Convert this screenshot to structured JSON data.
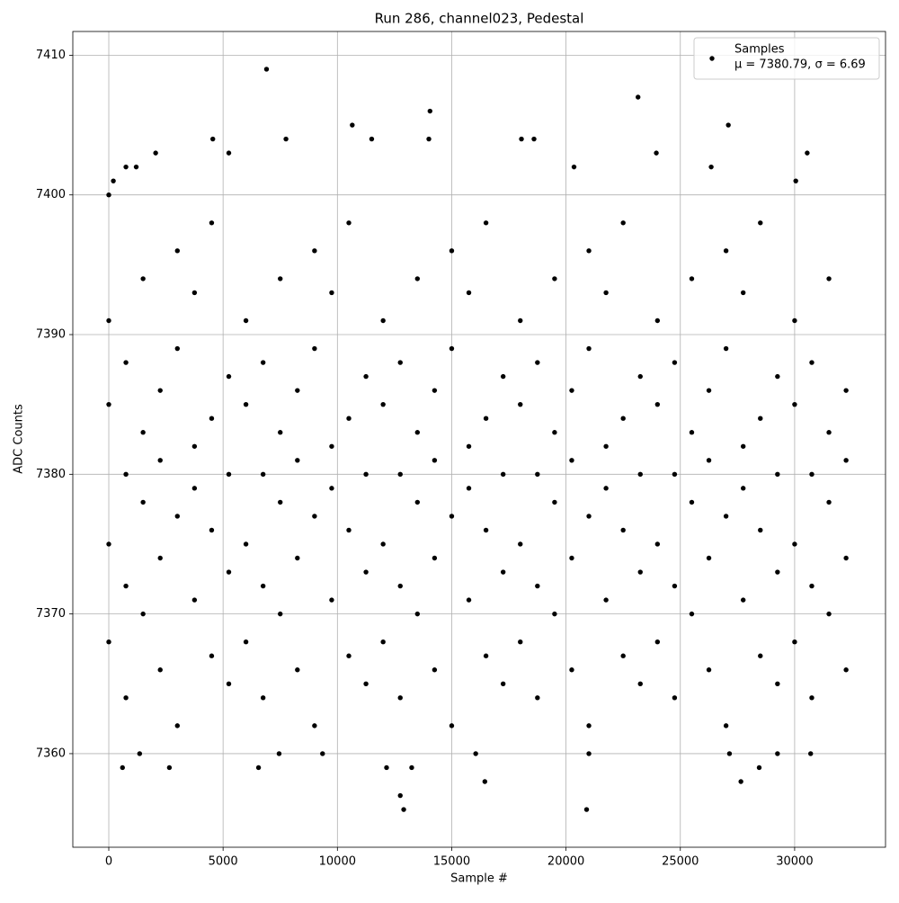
{
  "chart_data": {
    "type": "scatter",
    "title": "Run 286, channel023, Pedestal",
    "x_label": "Sample #",
    "y_label": "ADC Counts",
    "xlim": [
      -1573,
      33975
    ],
    "ylim": [
      7353.3,
      7411.7
    ],
    "xticks": [
      0,
      5000,
      10000,
      15000,
      20000,
      25000,
      30000
    ],
    "yticks": [
      7360,
      7370,
      7380,
      7390,
      7400,
      7410
    ],
    "grid": true,
    "legend_corner": "upper right",
    "legend_note": "μ = 7380.79, σ = 6.69",
    "series": [
      {
        "name": "Samples",
        "color": "#000000",
        "x": [
          0,
          0,
          0,
          0,
          750,
          750,
          750,
          750,
          1500,
          1500,
          1500,
          1500,
          2250,
          2250,
          2250,
          2250,
          3000,
          3000,
          3000,
          3000,
          3750,
          3750,
          3750,
          3750,
          4500,
          4500,
          4500,
          4500,
          5250,
          5250,
          5250,
          5250,
          6000,
          6000,
          6000,
          6000,
          6750,
          6750,
          6750,
          6750,
          7500,
          7500,
          7500,
          7500,
          8250,
          8250,
          8250,
          8250,
          9000,
          9000,
          9000,
          9000,
          9750,
          9750,
          9750,
          9750,
          10500,
          10500,
          10500,
          10500,
          11250,
          11250,
          11250,
          11250,
          12000,
          12000,
          12000,
          12000,
          12750,
          12750,
          12750,
          12750,
          13500,
          13500,
          13500,
          13500,
          14250,
          14250,
          14250,
          14250,
          15000,
          15000,
          15000,
          15000,
          15750,
          15750,
          15750,
          15750,
          16500,
          16500,
          16500,
          16500,
          17250,
          17250,
          17250,
          17250,
          18000,
          18000,
          18000,
          18000,
          18750,
          18750,
          18750,
          18750,
          19500,
          19500,
          19500,
          19500,
          20250,
          20250,
          20250,
          20250,
          21000,
          21000,
          21000,
          21000,
          21750,
          21750,
          21750,
          21750,
          22500,
          22500,
          22500,
          22500,
          23250,
          23250,
          23250,
          23250,
          24000,
          24000,
          24000,
          24000,
          24750,
          24750,
          24750,
          24750,
          25500,
          25500,
          25500,
          25500,
          26250,
          26250,
          26250,
          26250,
          27000,
          27000,
          27000,
          27000,
          27750,
          27750,
          27750,
          27750,
          28500,
          28500,
          28500,
          28500,
          29250,
          29250,
          29250,
          29250,
          30000,
          30000,
          30000,
          30000,
          30750,
          30750,
          30750,
          30750,
          31500,
          31500,
          31500,
          31500,
          32250,
          32250,
          32250,
          32250,
          0,
          200,
          750,
          1200,
          2050,
          4550,
          5250,
          6900,
          7750,
          10650,
          11500,
          14050,
          14000,
          18050,
          18600,
          20350,
          23150,
          23950,
          26350,
          27100,
          30550,
          30050,
          600,
          1350,
          2650,
          6550,
          7450,
          9350,
          12150,
          12750,
          12900,
          13250,
          16450,
          16050,
          20900,
          21000,
          27650,
          28450,
          29250,
          27150,
          30700
        ],
        "values": [
          7375,
          7385,
          7368,
          7391,
          7380,
          7372,
          7388,
          7364,
          7378,
          7394,
          7370,
          7383,
          7386,
          7366,
          7381,
          7374,
          7377,
          7389,
          7362,
          7396,
          7382,
          7371,
          7393,
          7379,
          7384,
          7367,
          7376,
          7398,
          7373,
          7387,
          7380,
          7365,
          7375,
          7385,
          7368,
          7391,
          7380,
          7372,
          7388,
          7364,
          7378,
          7394,
          7370,
          7383,
          7386,
          7366,
          7381,
          7374,
          7377,
          7389,
          7362,
          7396,
          7382,
          7371,
          7393,
          7379,
          7384,
          7367,
          7376,
          7398,
          7373,
          7387,
          7380,
          7365,
          7375,
          7385,
          7368,
          7391,
          7380,
          7372,
          7388,
          7364,
          7378,
          7394,
          7370,
          7383,
          7386,
          7366,
          7381,
          7374,
          7377,
          7389,
          7362,
          7396,
          7382,
          7371,
          7393,
          7379,
          7384,
          7367,
          7376,
          7398,
          7373,
          7387,
          7380,
          7365,
          7375,
          7385,
          7368,
          7391,
          7380,
          7372,
          7388,
          7364,
          7378,
          7394,
          7370,
          7383,
          7386,
          7366,
          7381,
          7374,
          7377,
          7389,
          7362,
          7396,
          7382,
          7371,
          7393,
          7379,
          7384,
          7367,
          7376,
          7398,
          7373,
          7387,
          7380,
          7365,
          7375,
          7385,
          7368,
          7391,
          7380,
          7372,
          7388,
          7364,
          7378,
          7394,
          7370,
          7383,
          7386,
          7366,
          7381,
          7374,
          7377,
          7389,
          7362,
          7396,
          7382,
          7371,
          7393,
          7379,
          7384,
          7367,
          7376,
          7398,
          7373,
          7387,
          7380,
          7365,
          7375,
          7385,
          7368,
          7391,
          7380,
          7372,
          7388,
          7364,
          7378,
          7394,
          7370,
          7383,
          7386,
          7366,
          7381,
          7374,
          7400,
          7401,
          7402,
          7402,
          7403,
          7404,
          7403,
          7409,
          7404,
          7405,
          7404,
          7406,
          7404,
          7404,
          7404,
          7402,
          7407,
          7403,
          7402,
          7405,
          7403,
          7401,
          7359,
          7360,
          7359,
          7359,
          7360,
          7360,
          7359,
          7357,
          7356,
          7359,
          7358,
          7360,
          7356,
          7360,
          7358,
          7359,
          7360,
          7360,
          7360
        ]
      }
    ]
  }
}
